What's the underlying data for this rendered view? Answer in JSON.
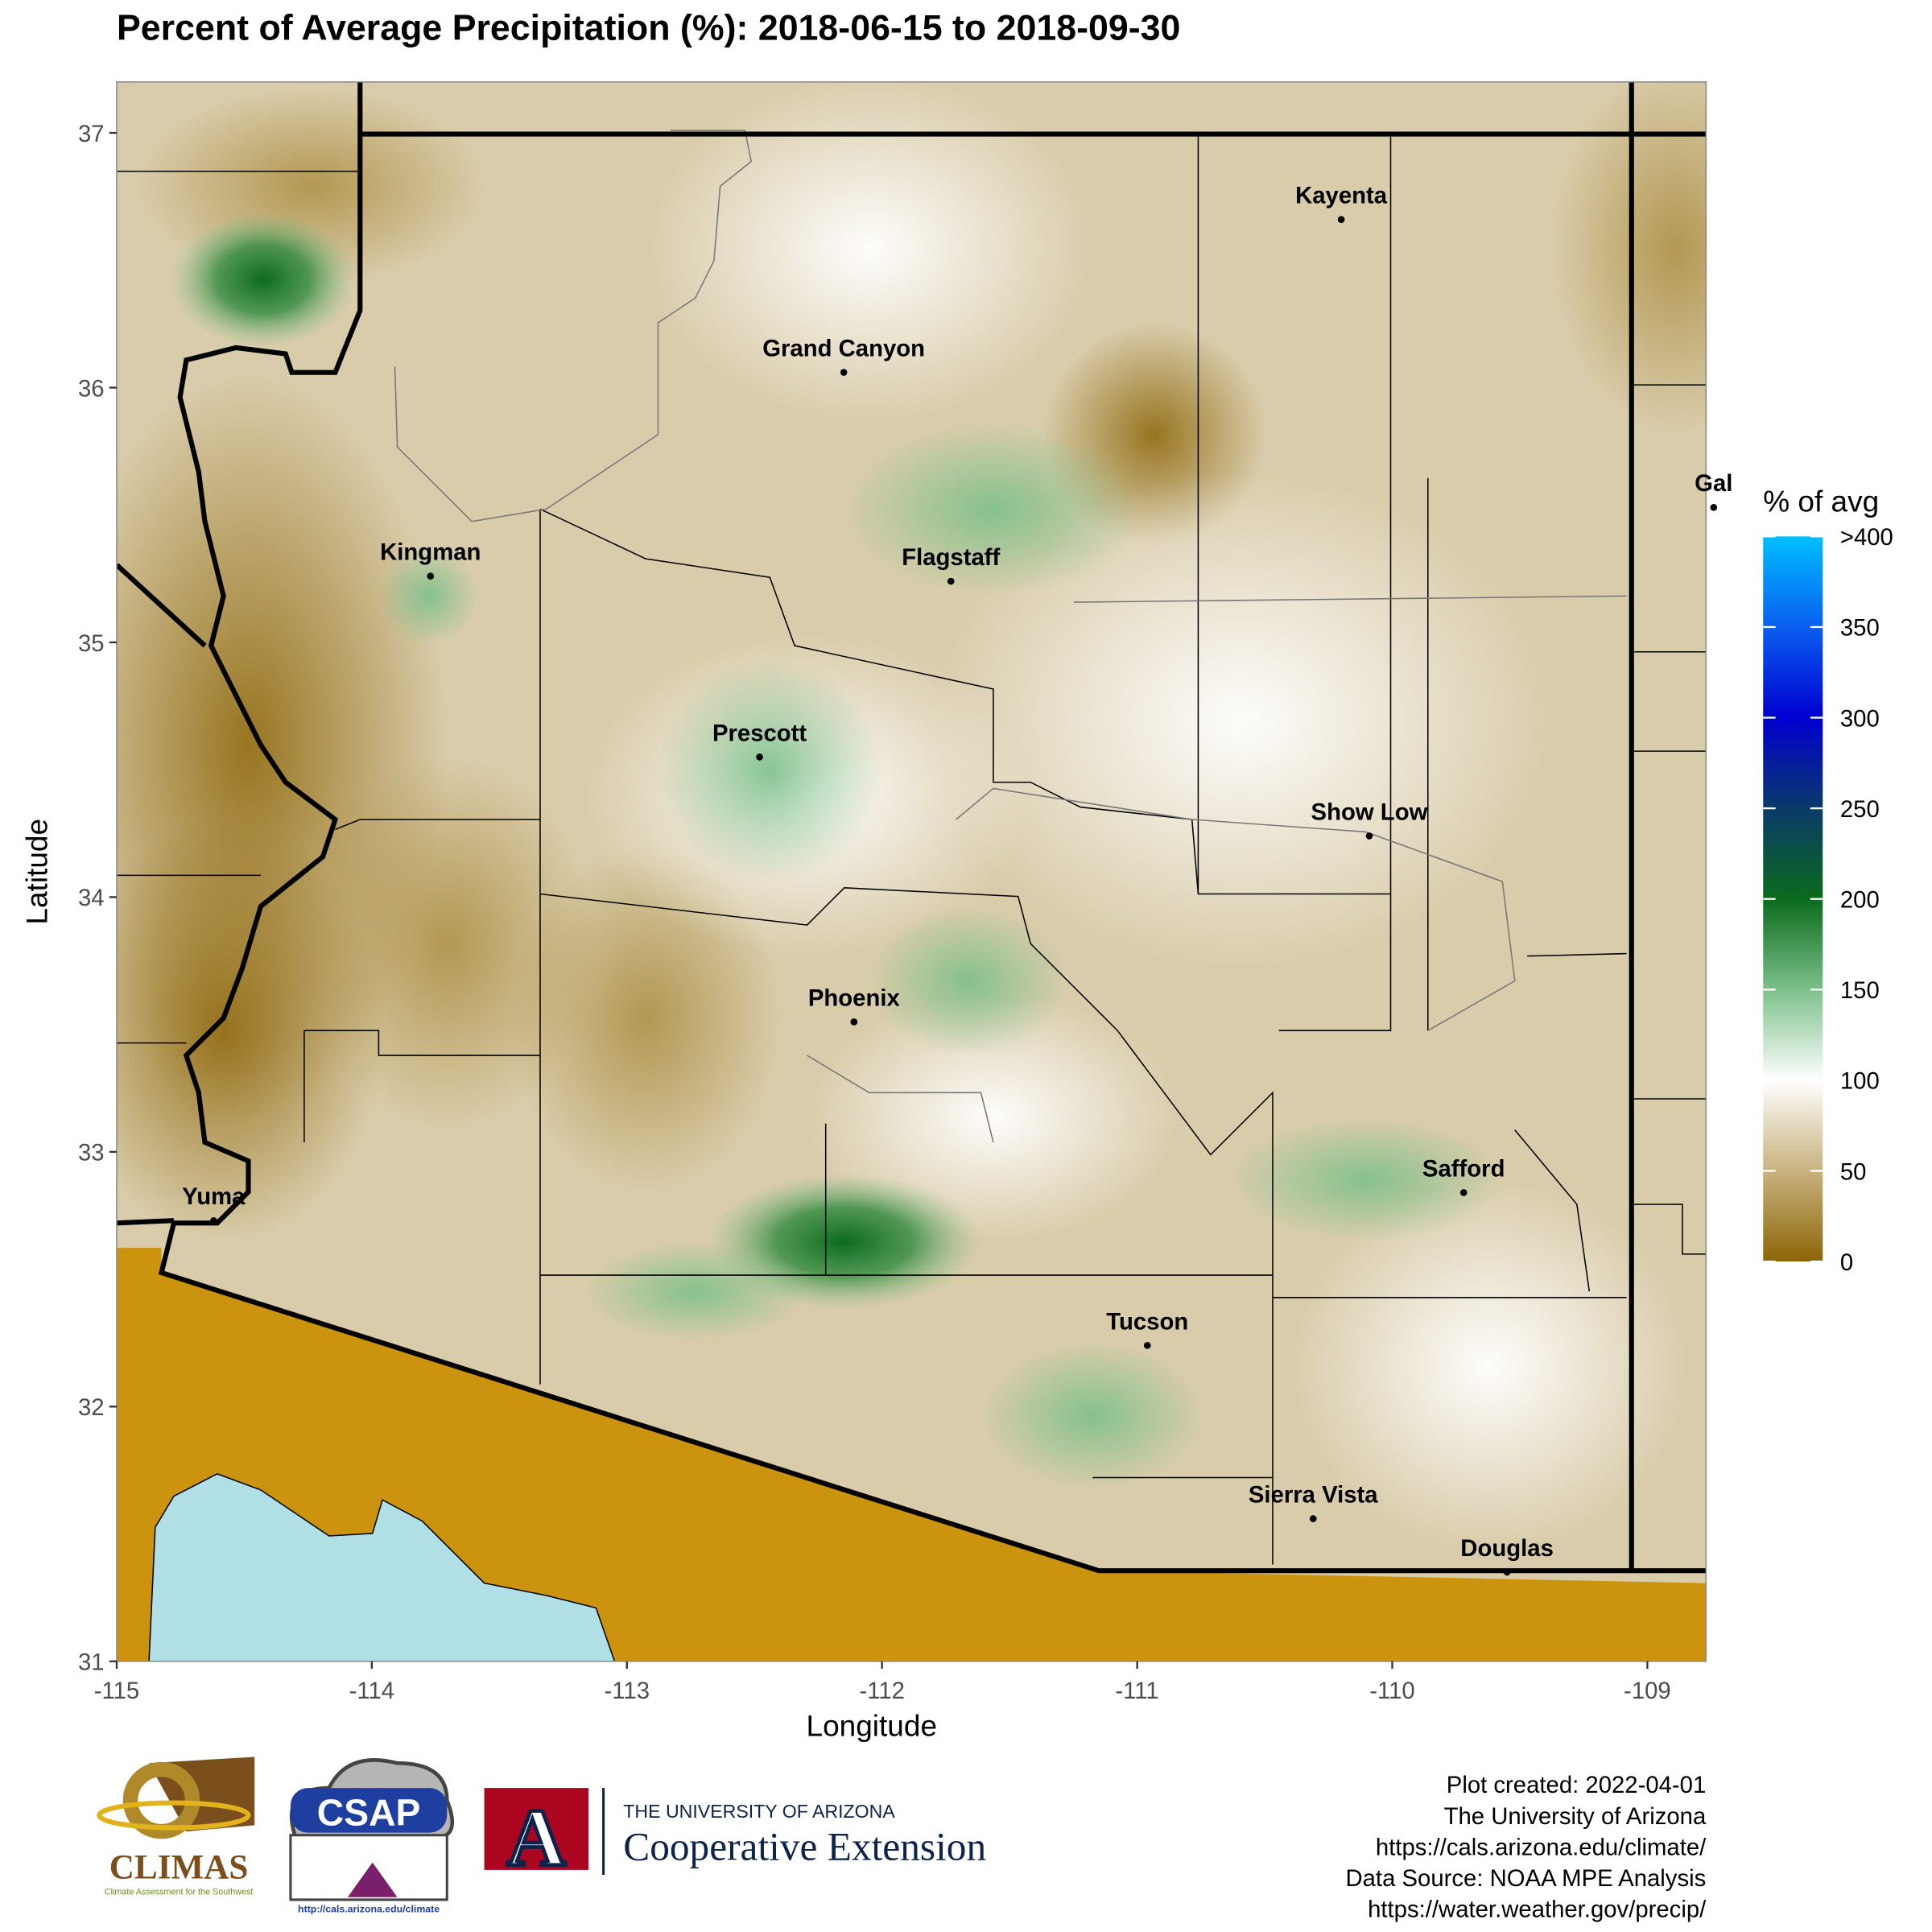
{
  "chart_data": {
    "type": "map",
    "title": "Percent of Average Precipitation (%): 2018-06-15 to 2018-09-30",
    "x_label": "Longitude",
    "y_label": "Latitude",
    "xlim": [
      -115,
      -108.77
    ],
    "ylim": [
      31,
      37.2
    ],
    "xticks": [
      -115,
      -114,
      -113,
      -112,
      -111,
      -110,
      -109
    ],
    "yticks": [
      31,
      32,
      33,
      34,
      35,
      36,
      37
    ],
    "cities": [
      {
        "name": "Kayenta",
        "lon": -110.2,
        "lat": 36.66
      },
      {
        "name": "Grand Canyon",
        "lon": -112.15,
        "lat": 36.06
      },
      {
        "name": "Kingman",
        "lon": -113.77,
        "lat": 35.26
      },
      {
        "name": "Flagstaff",
        "lon": -111.73,
        "lat": 35.24
      },
      {
        "name": "Gal",
        "lon": -108.74,
        "lat": 35.53
      },
      {
        "name": "Prescott",
        "lon": -112.48,
        "lat": 34.55
      },
      {
        "name": "Show Low",
        "lon": -110.09,
        "lat": 34.24
      },
      {
        "name": "Phoenix",
        "lon": -112.11,
        "lat": 33.51
      },
      {
        "name": "Yuma",
        "lon": -114.62,
        "lat": 32.73
      },
      {
        "name": "Safford",
        "lon": -109.72,
        "lat": 32.84
      },
      {
        "name": "Tucson",
        "lon": -110.96,
        "lat": 32.24
      },
      {
        "name": "Sierra Vista",
        "lon": -110.31,
        "lat": 31.56
      },
      {
        "name": "Douglas",
        "lon": -109.55,
        "lat": 31.35
      }
    ],
    "legend": {
      "title": "% of avg",
      "lim": [
        0,
        400
      ],
      "ticks": [
        0,
        50,
        100,
        150,
        200,
        250,
        300,
        350,
        {
          "value": 400,
          "label": ">400"
        }
      ],
      "colorscale": [
        {
          "value": 0,
          "color": "#8c6508"
        },
        {
          "value": 50,
          "color": "#c8b27e"
        },
        {
          "value": 100,
          "color": "#ffffff"
        },
        {
          "value": 150,
          "color": "#7cc08a"
        },
        {
          "value": 200,
          "color": "#0b6b1c"
        },
        {
          "value": 250,
          "color": "#0a3a6a"
        },
        {
          "value": 300,
          "color": "#0000d0"
        },
        {
          "value": 350,
          "color": "#0a5ef0"
        },
        {
          "value": 400,
          "color": "#00bfff"
        }
      ]
    }
  },
  "footer": {
    "logos": {
      "climas": "CLIMAS",
      "climas_sub": "Climate Assessment for the Southwest",
      "csap": "CSAP",
      "csap_url": "http://cals.arizona.edu/climate",
      "ua": "THE UNIVERSITY OF ARIZONA",
      "extension": "Cooperative Extension"
    },
    "credits": [
      "Plot created: 2022-04-01",
      "The University of Arizona",
      "https://cals.arizona.edu/climate/",
      "Data Source: NOAA MPE Analysis",
      "https://water.weather.gov/precip/"
    ]
  }
}
